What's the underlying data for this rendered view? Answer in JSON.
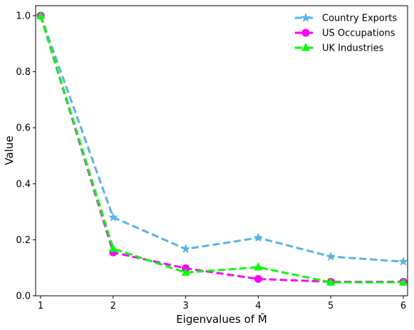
{
  "chart_data": {
    "type": "line",
    "x": [
      1,
      2,
      3,
      4,
      5,
      6
    ],
    "xlabel": "Eigenvalues of M̃",
    "ylabel": "Value",
    "xlim": [
      1,
      6
    ],
    "ylim": [
      0,
      1.0
    ],
    "xticks": [
      "1",
      "2",
      "3",
      "4",
      "5",
      "6"
    ],
    "yticks": [
      "0.0",
      "0.2",
      "0.4",
      "0.6",
      "0.8",
      "1.0"
    ],
    "grid": false,
    "legend_position": "top-right",
    "series": [
      {
        "name": "Country Exports",
        "color": "#56b4e9",
        "marker": "star",
        "values": [
          1.0,
          0.28,
          0.167,
          0.207,
          0.14,
          0.122
        ]
      },
      {
        "name": "US Occupations",
        "color": "#ff00ff",
        "marker": "circle",
        "values": [
          1.0,
          0.155,
          0.098,
          0.06,
          0.05,
          0.05
        ]
      },
      {
        "name": "UK Industries",
        "color": "#00ff00",
        "marker": "triangle",
        "values": [
          1.0,
          0.168,
          0.083,
          0.102,
          0.048,
          0.048
        ]
      }
    ]
  }
}
